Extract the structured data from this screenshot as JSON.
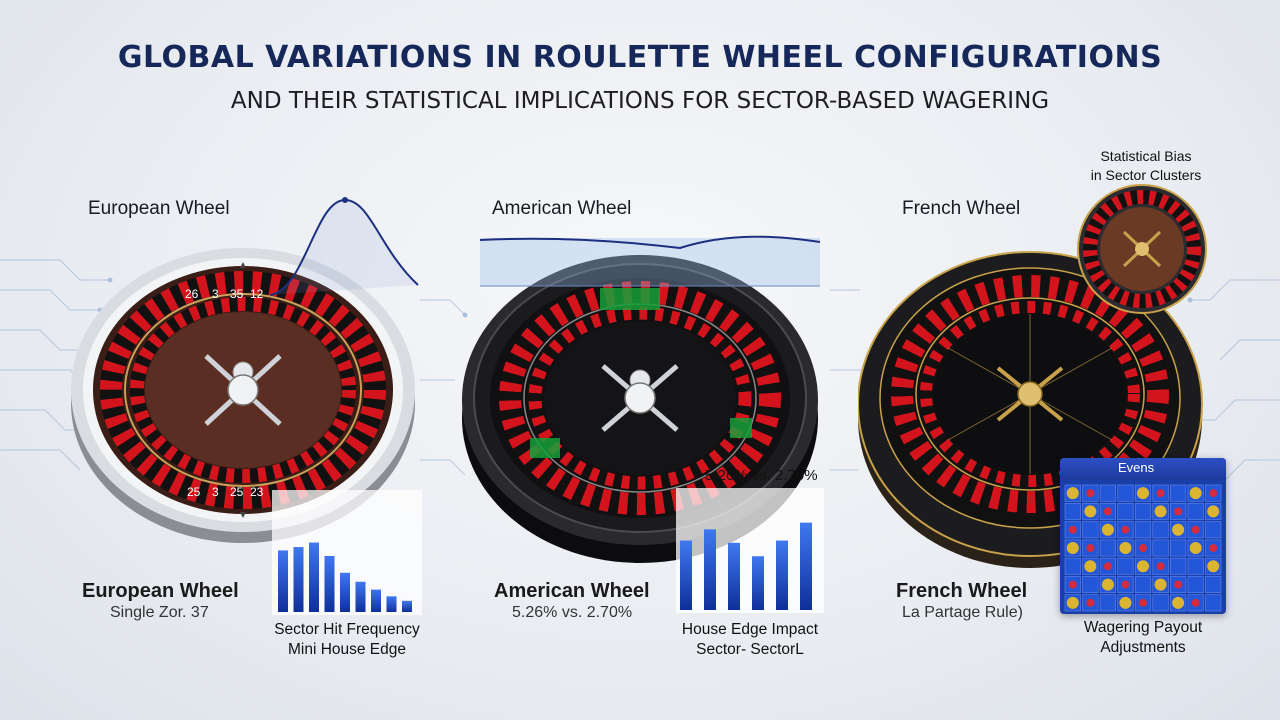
{
  "header": {
    "title": "GLOBAL VARIATIONS IN ROULETTE WHEEL CONFIGURATIONS",
    "subtitle": "AND THEIR STATISTICAL IMPLICATIONS FOR SECTOR-BASED WAGERING"
  },
  "wheels": [
    {
      "top_label": "European Wheel",
      "bottom_name": "European Wheel",
      "bottom_sub": "Single Zor. 37",
      "chart_caption_1": "Sector Hit Frequency",
      "chart_caption_2": "Mini House Edge",
      "rim_color": "#c9ccd2",
      "inner_color": "#5a2e22"
    },
    {
      "top_label": "American Wheel",
      "bottom_name": "American Wheel",
      "bottom_sub": "5.26% vs. 2.70%",
      "overlay_text": "5.26% vs. 2.70%",
      "chart_caption_1": "House Edge Impact",
      "chart_caption_2": "Sector- SectorL",
      "rim_color": "#2a2a2e",
      "inner_color": "#141416"
    },
    {
      "top_label": "French Wheel",
      "bottom_name": "French Wheel",
      "bottom_sub": "La Partage Rule)",
      "badge_line_1": "Statistical Bias",
      "badge_line_2": "in Sector Clusters",
      "panel_label": "Evens",
      "panel_caption_1": "Wagering Payout",
      "panel_caption_2": "Adjustments",
      "rim_color": "#1c1c1e",
      "inner_color": "#0e0e10"
    }
  ],
  "numbers_top": [
    "26",
    "3",
    "35",
    "12"
  ],
  "numbers_bottom": [
    "25",
    "3",
    "25",
    "23"
  ],
  "colors": {
    "title": "#16285a",
    "red": "#d4141c",
    "black": "#111111",
    "green": "#16a03a",
    "gold": "#c8a24a",
    "bar_blue": "#1f4fd0"
  },
  "bars_european": [
    0.55,
    0.58,
    0.62,
    0.5,
    0.35,
    0.27,
    0.2,
    0.14,
    0.1
  ],
  "bars_american": [
    0.62,
    0.72,
    0.6,
    0.48,
    0.62,
    0.78
  ]
}
